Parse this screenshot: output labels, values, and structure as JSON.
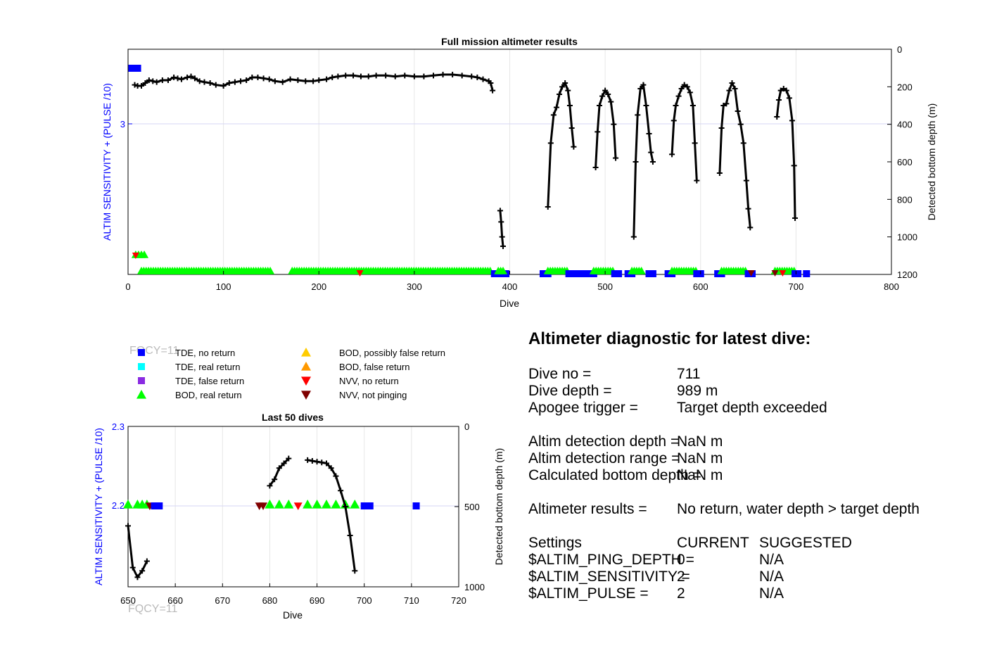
{
  "top_chart": {
    "title": "Full mission altimeter results",
    "xlabel": "Dive",
    "ylabel_left": "ALTIM SENSITIVITY + (PULSE /10)",
    "ylabel_right": "Detected bottom depth (m)",
    "x_ticks": [
      "0",
      "100",
      "200",
      "300",
      "400",
      "500",
      "600",
      "700",
      "800"
    ],
    "y_left_ticks": [
      "3"
    ],
    "y_right_ticks": [
      "0",
      "200",
      "400",
      "600",
      "800",
      "1000",
      "1200"
    ]
  },
  "bottom_chart": {
    "title": "Last 50 dives",
    "xlabel": "Dive",
    "ylabel_left": "ALTIM SENSITIVITY + (PULSE /10)",
    "ylabel_right": "Detected bottom depth (m)",
    "x_ticks": [
      "650",
      "660",
      "670",
      "680",
      "690",
      "700",
      "710",
      "720"
    ],
    "y_left_ticks": [
      "2.3",
      "2.2"
    ],
    "y_right_ticks": [
      "0",
      "500",
      "1000"
    ],
    "annotation_top": "FQCY=11",
    "annotation_bottom": "FQCY=11"
  },
  "legend": {
    "items": [
      {
        "label": "TDE, no return",
        "color": "#0000ff",
        "marker": "square"
      },
      {
        "label": "TDE, real return",
        "color": "#00ffff",
        "marker": "square"
      },
      {
        "label": "TDE, false return",
        "color": "#8a2be2",
        "marker": "square"
      },
      {
        "label": "BOD, real return",
        "color": "#00ff00",
        "marker": "triangle-up"
      },
      {
        "label": "BOD, possibly false return",
        "color": "#ffcc00",
        "marker": "triangle-up"
      },
      {
        "label": "BOD, false return",
        "color": "#ff9900",
        "marker": "triangle-up"
      },
      {
        "label": "NVV, no return",
        "color": "#ff0000",
        "marker": "triangle-down"
      },
      {
        "label": "NVV, not pinging",
        "color": "#800000",
        "marker": "triangle-down"
      }
    ]
  },
  "diagnostic": {
    "title": "Altimeter diagnostic for latest dive:",
    "dive_no_label": "Dive no =",
    "dive_no_value": "711",
    "dive_depth_label": "Dive depth =",
    "dive_depth_value": "989 m",
    "apogee_label": "Apogee trigger =",
    "apogee_value": "Target depth exceeded",
    "detect_depth_label": "Altim detection depth =",
    "detect_depth_value": "NaN m",
    "detect_range_label": "Altim detection range =",
    "detect_range_value": "NaN m",
    "calc_bottom_label": "Calculated bottom depth =",
    "calc_bottom_value": "NaN m",
    "results_label": "Altimeter results =",
    "results_value": "No return, water depth > target depth",
    "settings_label": "Settings",
    "current_label": "CURRENT",
    "suggested_label": "SUGGESTED",
    "ping_depth_label": "$ALTIM_PING_DEPTH =",
    "ping_depth_current": "0",
    "ping_depth_suggested": "N/A",
    "sensitivity_label": "$ALTIM_SENSITIVITY =",
    "sensitivity_current": "2",
    "sensitivity_suggested": "N/A",
    "pulse_label": "$ALTIM_PULSE =",
    "pulse_current": "2",
    "pulse_suggested": "N/A"
  },
  "chart_data": [
    {
      "type": "line",
      "title": "Full mission altimeter results",
      "xlabel": "Dive",
      "ylabel": "Detected bottom depth (m)",
      "xlim": [
        0,
        800
      ],
      "ylim_right": [
        0,
        1200
      ],
      "series": [
        {
          "x": [
            7,
            10,
            14,
            18,
            22,
            26,
            30,
            36,
            42,
            48,
            52,
            56,
            62,
            66,
            70,
            75,
            80,
            86,
            92,
            100,
            106,
            112,
            118,
            124,
            130,
            136,
            142,
            148,
            154,
            162,
            170,
            178,
            186,
            194,
            200,
            208,
            214,
            220,
            228,
            236,
            244,
            252,
            260,
            270,
            280,
            290,
            300,
            310,
            320,
            330,
            340,
            350,
            360,
            366,
            372,
            378,
            380,
            382
          ],
          "y": [
            190,
            195,
            195,
            180,
            165,
            170,
            175,
            165,
            165,
            150,
            155,
            160,
            150,
            145,
            155,
            170,
            175,
            180,
            190,
            195,
            180,
            175,
            170,
            165,
            150,
            150,
            155,
            160,
            170,
            175,
            160,
            165,
            170,
            170,
            165,
            160,
            150,
            145,
            140,
            140,
            145,
            145,
            140,
            140,
            145,
            140,
            145,
            145,
            140,
            135,
            135,
            140,
            145,
            150,
            160,
            170,
            180,
            220
          ]
        },
        {
          "x": [
            390,
            391,
            392,
            393
          ],
          "y": [
            860,
            920,
            1000,
            1050
          ]
        },
        {
          "x": [
            440,
            443,
            446,
            449,
            452,
            455,
            458,
            461,
            463,
            465,
            467
          ],
          "y": [
            840,
            500,
            350,
            310,
            240,
            200,
            180,
            220,
            300,
            420,
            520
          ]
        },
        {
          "x": [
            490,
            492,
            494,
            497,
            500,
            503,
            506,
            509,
            511
          ],
          "y": [
            630,
            440,
            300,
            250,
            220,
            240,
            280,
            400,
            580
          ]
        },
        {
          "x": [
            530,
            532,
            534,
            537,
            540,
            543,
            546,
            548,
            550
          ],
          "y": [
            1000,
            600,
            350,
            210,
            190,
            300,
            450,
            550,
            600
          ]
        },
        {
          "x": [
            570,
            572,
            574,
            577,
            580,
            583,
            586,
            589,
            592,
            594,
            596
          ],
          "y": [
            560,
            380,
            300,
            250,
            210,
            190,
            200,
            230,
            300,
            500,
            700
          ]
        },
        {
          "x": [
            620,
            622,
            624,
            627,
            630,
            633,
            636,
            639,
            642,
            645,
            648,
            650,
            652
          ],
          "y": [
            660,
            420,
            300,
            290,
            220,
            180,
            210,
            330,
            400,
            500,
            700,
            850,
            950
          ]
        },
        {
          "x": [
            680,
            682,
            684,
            687,
            690,
            693,
            696,
            698,
            699
          ],
          "y": [
            360,
            270,
            220,
            210,
            220,
            260,
            380,
            620,
            900
          ]
        }
      ]
    },
    {
      "type": "line",
      "title": "Last 50 dives",
      "xlabel": "Dive",
      "ylabel": "Detected bottom depth (m)",
      "xlim": [
        650,
        720
      ],
      "ylim_right": [
        0,
        1000
      ],
      "series": [
        {
          "x": [
            650,
            651,
            652,
            653,
            654
          ],
          "y": [
            620,
            880,
            940,
            900,
            840
          ]
        },
        {
          "x": [
            680,
            681,
            682,
            683,
            684
          ],
          "y": [
            370,
            330,
            260,
            230,
            200
          ]
        },
        {
          "x": [
            688,
            689,
            690,
            691,
            692,
            693,
            694,
            695,
            696,
            697,
            698
          ],
          "y": [
            210,
            215,
            220,
            225,
            230,
            260,
            310,
            400,
            500,
            680,
            900
          ]
        }
      ]
    }
  ]
}
